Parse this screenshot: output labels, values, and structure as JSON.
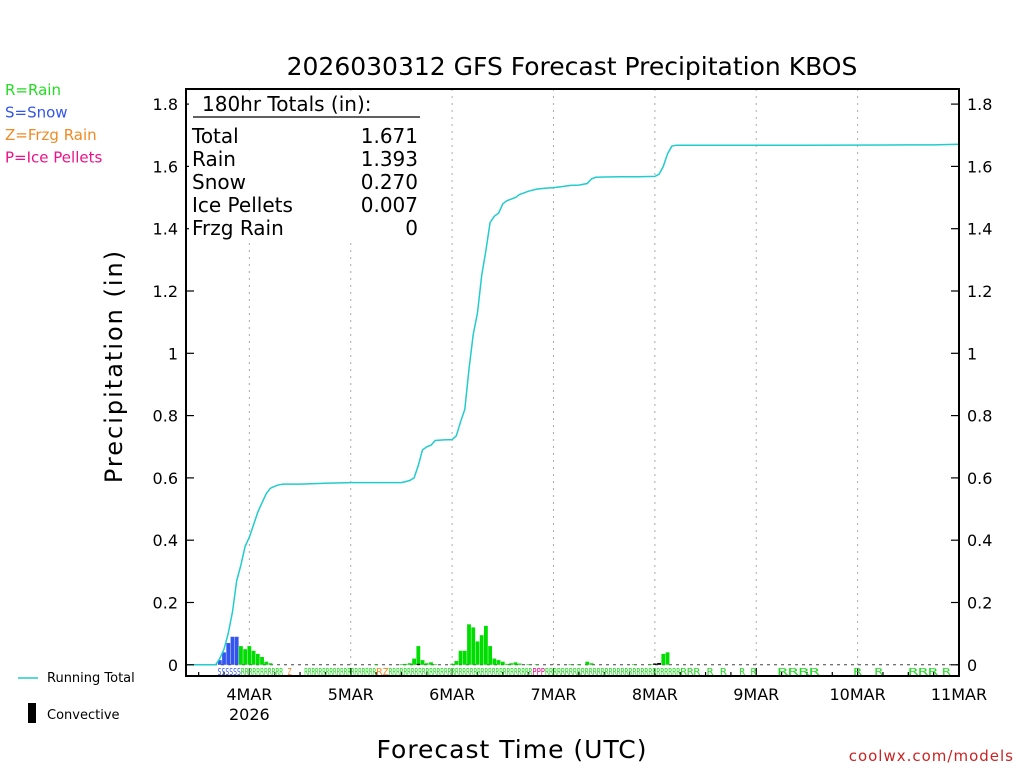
{
  "chart_data": {
    "type": "bar",
    "title": "2026030312 GFS Forecast Precipitation KBOS",
    "xlabel": "Forecast Time (UTC)",
    "ylabel": "Precipitation (in)",
    "ylim": [
      0,
      1.85
    ],
    "y_ticks": [
      {
        "value": 0,
        "label": "0"
      },
      {
        "value": 0.2,
        "label": "0.2"
      },
      {
        "value": 0.4,
        "label": "0.4"
      },
      {
        "value": 0.6,
        "label": "0.6"
      },
      {
        "value": 0.8,
        "label": "0.8"
      },
      {
        "value": 1.0,
        "label": "1"
      },
      {
        "value": 1.2,
        "label": "1.2"
      },
      {
        "value": 1.4,
        "label": "1.4"
      },
      {
        "value": 1.6,
        "label": "1.6"
      },
      {
        "value": 1.8,
        "label": "1.8"
      }
    ],
    "x_unit": "hours from 2026-03-03 12UTC",
    "xlim": [
      -3,
      180
    ],
    "x_ticks": [
      {
        "hour": 12,
        "label": "4MAR",
        "sublabel": "2026"
      },
      {
        "hour": 36,
        "label": "5MAR",
        "sublabel": ""
      },
      {
        "hour": 60,
        "label": "6MAR",
        "sublabel": ""
      },
      {
        "hour": 84,
        "label": "7MAR",
        "sublabel": ""
      },
      {
        "hour": 108,
        "label": "8MAR",
        "sublabel": ""
      },
      {
        "hour": 132,
        "label": "9MAR",
        "sublabel": ""
      },
      {
        "hour": 156,
        "label": "10MAR",
        "sublabel": ""
      },
      {
        "hour": 180,
        "label": "11MAR",
        "sublabel": ""
      }
    ],
    "totals_box": {
      "heading": "180hr Totals (in):",
      "rows": [
        {
          "label": "Total",
          "value": "1.671"
        },
        {
          "label": "Rain",
          "value": "1.393"
        },
        {
          "label": "Snow",
          "value": "0.270"
        },
        {
          "label": "Ice Pellets",
          "value": "0.007"
        },
        {
          "label": "Frzg Rain",
          "value": "0"
        }
      ]
    },
    "type_legend": [
      {
        "text": "R=Rain",
        "color": "#22dd22"
      },
      {
        "text": "S=Snow",
        "color": "#3355ee"
      },
      {
        "text": "Z=Frzg Rain",
        "color": "#f08a24"
      },
      {
        "text": "P=Ice Pellets",
        "color": "#ee1188"
      }
    ],
    "series_legend": [
      {
        "name": "Running Total",
        "color": "#22cccc",
        "style": "line"
      },
      {
        "name": "Convective",
        "color": "#000000",
        "style": "bar"
      }
    ],
    "series": [
      {
        "name": "Running Total",
        "color": "#22cccc",
        "points": [
          [
            -3,
            0
          ],
          [
            4,
            0
          ],
          [
            5,
            0.02
          ],
          [
            6,
            0.05
          ],
          [
            7,
            0.1
          ],
          [
            8,
            0.17
          ],
          [
            9,
            0.27
          ],
          [
            10,
            0.32
          ],
          [
            11,
            0.38
          ],
          [
            12,
            0.41
          ],
          [
            13,
            0.45
          ],
          [
            14,
            0.49
          ],
          [
            15,
            0.52
          ],
          [
            16,
            0.55
          ],
          [
            17,
            0.567
          ],
          [
            18,
            0.573
          ],
          [
            19,
            0.578
          ],
          [
            20,
            0.58
          ],
          [
            24,
            0.58
          ],
          [
            30,
            0.583
          ],
          [
            36,
            0.585
          ],
          [
            48,
            0.585
          ],
          [
            49,
            0.588
          ],
          [
            50,
            0.592
          ],
          [
            51,
            0.6
          ],
          [
            52,
            0.64
          ],
          [
            53,
            0.69
          ],
          [
            54,
            0.7
          ],
          [
            55,
            0.705
          ],
          [
            56,
            0.72
          ],
          [
            58,
            0.722
          ],
          [
            60,
            0.723
          ],
          [
            61,
            0.735
          ],
          [
            62,
            0.78
          ],
          [
            63,
            0.82
          ],
          [
            64,
            0.95
          ],
          [
            65,
            1.06
          ],
          [
            66,
            1.13
          ],
          [
            67,
            1.25
          ],
          [
            68,
            1.33
          ],
          [
            69,
            1.42
          ],
          [
            70,
            1.44
          ],
          [
            71,
            1.45
          ],
          [
            72,
            1.48
          ],
          [
            73,
            1.49
          ],
          [
            74,
            1.495
          ],
          [
            75,
            1.5
          ],
          [
            76,
            1.51
          ],
          [
            77,
            1.515
          ],
          [
            78,
            1.52
          ],
          [
            80,
            1.527
          ],
          [
            82,
            1.53
          ],
          [
            84,
            1.532
          ],
          [
            86,
            1.535
          ],
          [
            88,
            1.539
          ],
          [
            90,
            1.54
          ],
          [
            92,
            1.545
          ],
          [
            93,
            1.56
          ],
          [
            94,
            1.565
          ],
          [
            96,
            1.566
          ],
          [
            100,
            1.567
          ],
          [
            104,
            1.567
          ],
          [
            108,
            1.568
          ],
          [
            109,
            1.575
          ],
          [
            110,
            1.6
          ],
          [
            111,
            1.64
          ],
          [
            112,
            1.665
          ],
          [
            113,
            1.668
          ],
          [
            120,
            1.668
          ],
          [
            132,
            1.668
          ],
          [
            144,
            1.668
          ],
          [
            168,
            1.669
          ],
          [
            174,
            1.669
          ],
          [
            180,
            1.671
          ]
        ]
      },
      {
        "name": "Snow",
        "color": "#3355ee",
        "bars": [
          [
            5,
            0.015
          ],
          [
            6,
            0.04
          ],
          [
            7,
            0.07
          ],
          [
            8,
            0.09
          ],
          [
            9,
            0.09
          ]
        ]
      },
      {
        "name": "Rain",
        "color": "#00dd00",
        "bars": [
          [
            10,
            0.06
          ],
          [
            11,
            0.05
          ],
          [
            12,
            0.06
          ],
          [
            13,
            0.045
          ],
          [
            14,
            0.035
          ],
          [
            15,
            0.025
          ],
          [
            16,
            0.01
          ],
          [
            17,
            0.005
          ],
          [
            42,
            0.002
          ],
          [
            48,
            0.002
          ],
          [
            49,
            0.003
          ],
          [
            50,
            0.005
          ],
          [
            51,
            0.02
          ],
          [
            52,
            0.06
          ],
          [
            53,
            0.015
          ],
          [
            54,
            0.005
          ],
          [
            55,
            0.008
          ],
          [
            56,
            0.002
          ],
          [
            60,
            0.003
          ],
          [
            61,
            0.012
          ],
          [
            62,
            0.045
          ],
          [
            63,
            0.045
          ],
          [
            64,
            0.13
          ],
          [
            65,
            0.12
          ],
          [
            66,
            0.075
          ],
          [
            67,
            0.095
          ],
          [
            68,
            0.125
          ],
          [
            69,
            0.06
          ],
          [
            70,
            0.02
          ],
          [
            71,
            0.015
          ],
          [
            72,
            0.01
          ],
          [
            73,
            0.003
          ],
          [
            74,
            0.005
          ],
          [
            75,
            0.008
          ],
          [
            76,
            0.004
          ],
          [
            78,
            0.002
          ],
          [
            80,
            0.002
          ],
          [
            88,
            0.002
          ],
          [
            90,
            0.002
          ],
          [
            92,
            0.01
          ],
          [
            93,
            0.005
          ],
          [
            103,
            0.002
          ],
          [
            107,
            0.002
          ],
          [
            110,
            0.035
          ],
          [
            111,
            0.04
          ]
        ]
      },
      {
        "name": "Convective",
        "color": "#000000",
        "bars": [
          [
            52,
            0.003
          ],
          [
            108,
            0.004
          ],
          [
            109,
            0.006
          ]
        ]
      }
    ],
    "type_strip": [
      {
        "text": "SSSSSS",
        "color": "#3355ee",
        "hour_start": 4.5,
        "hour_end": 10
      },
      {
        "text": "RRRRRRRRRRR",
        "color": "#22dd22",
        "hour_start": 10,
        "hour_end": 20
      },
      {
        "text": "Z",
        "color": "#f08a24",
        "hour_start": 21,
        "hour_end": 22
      },
      {
        "text": "RRRRRRRRRRRRRRRRRRRR",
        "color": "#22dd22",
        "hour_start": 25,
        "hour_end": 42
      },
      {
        "text": "RZ",
        "color": "#f08a24",
        "hour_start": 42,
        "hour_end": 45
      },
      {
        "text": "RRRRRRRRRRRRRRRRRRRRRRRRRRRRRRRRRRRRRRR",
        "color": "#22dd22",
        "hour_start": 45,
        "hour_end": 79
      },
      {
        "text": "PPP",
        "color": "#ee1188",
        "hour_start": 79,
        "hour_end": 82
      },
      {
        "text": "RRRRRRRRRRRRRRRRRRRRRRRRRRRRRRRRRR",
        "color": "#22dd22",
        "hour_start": 82,
        "hour_end": 114
      },
      {
        "text": "RRR R R",
        "color": "#22dd22",
        "hour_start": 114,
        "hour_end": 125
      },
      {
        "text": "R R",
        "color": "#22dd22",
        "hour_start": 128,
        "hour_end": 132
      },
      {
        "text": "RRRR",
        "color": "#22dd22",
        "hour_start": 137,
        "hour_end": 147
      },
      {
        "text": "R",
        "color": "#22dd22",
        "hour_start": 155,
        "hour_end": 157
      },
      {
        "text": "R",
        "color": "#22dd22",
        "hour_start": 160,
        "hour_end": 162
      },
      {
        "text": "RRR",
        "color": "#22dd22",
        "hour_start": 168,
        "hour_end": 175
      },
      {
        "text": "R",
        "color": "#22dd22",
        "hour_start": 176,
        "hour_end": 178
      }
    ]
  },
  "footer": {
    "credit": "coolwx.com/models"
  }
}
